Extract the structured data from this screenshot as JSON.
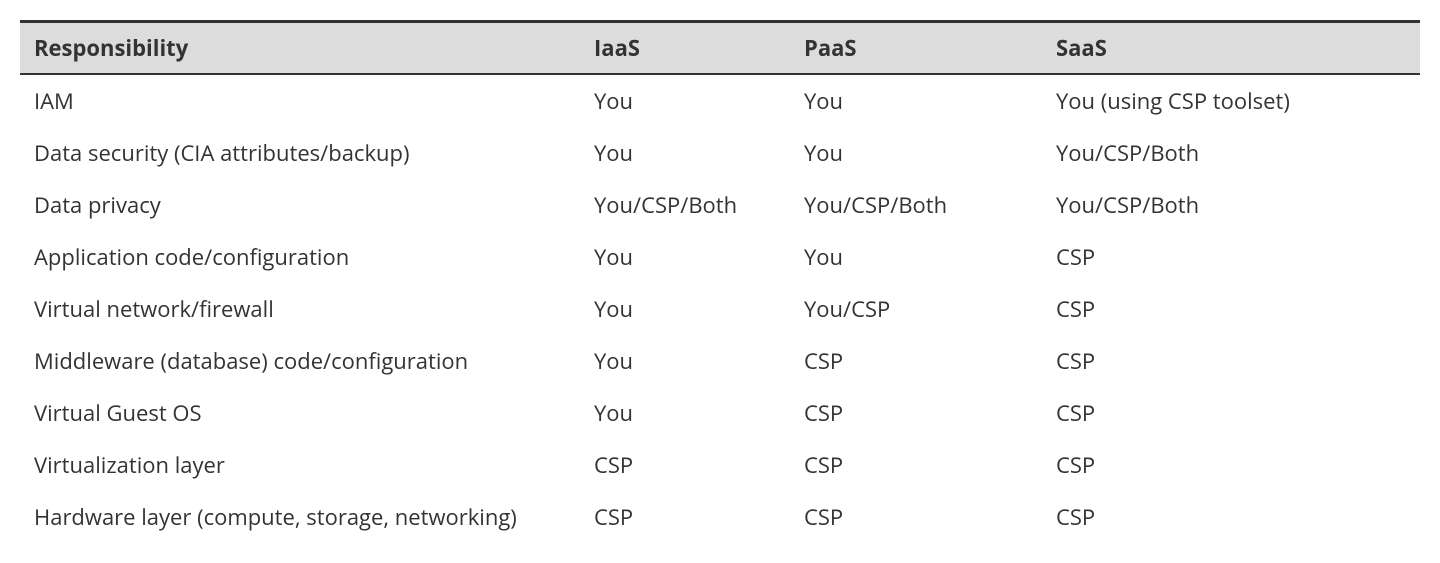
{
  "table": {
    "columns": [
      {
        "label": "Responsibility",
        "class": "col-resp"
      },
      {
        "label": "IaaS",
        "class": "col-iaas"
      },
      {
        "label": "PaaS",
        "class": "col-paas"
      },
      {
        "label": "SaaS",
        "class": "col-saas"
      }
    ],
    "rows": [
      [
        "IAM",
        "You",
        "You",
        "You (using CSP toolset)"
      ],
      [
        "Data security (CIA attributes/backup)",
        "You",
        "You",
        "You/CSP/Both"
      ],
      [
        "Data privacy",
        "You/CSP/Both",
        "You/CSP/Both",
        "You/CSP/Both"
      ],
      [
        "Application code/configuration",
        "You",
        "You",
        "CSP"
      ],
      [
        "Virtual network/firewall",
        "You",
        "You/CSP",
        "CSP"
      ],
      [
        "Middleware (database) code/configuration",
        "You",
        "CSP",
        "CSP"
      ],
      [
        "Virtual Guest OS",
        "You",
        "CSP",
        "CSP"
      ],
      [
        "Virtualization layer",
        "CSP",
        "CSP",
        "CSP"
      ],
      [
        "Hardware layer (compute, storage, networking)",
        "CSP",
        "CSP",
        "CSP"
      ]
    ],
    "header_bg": "#dcdcdc",
    "header_border_top": "#333333",
    "header_border_bottom": "#333333",
    "text_color": "#333333",
    "font_size": 22,
    "header_font_weight": 700
  }
}
